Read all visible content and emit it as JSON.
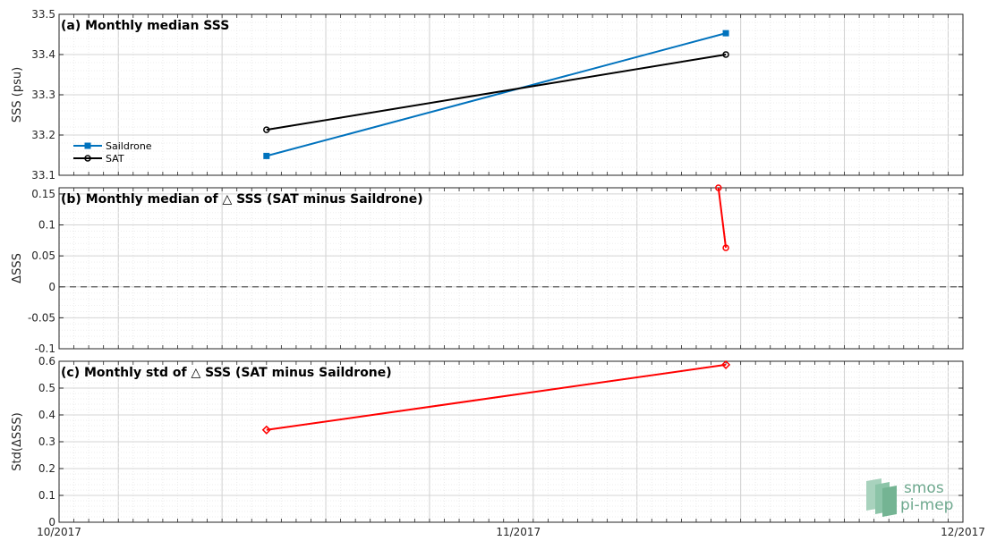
{
  "chart_data": [
    {
      "id": "a",
      "type": "line",
      "title": "(a) Monthly median SSS",
      "ylabel": "SSS (psu)",
      "ylim": [
        33.1,
        33.5
      ],
      "yticks": [
        "33.1",
        "33.2",
        "33.3",
        "33.4",
        "33.5"
      ],
      "legend": {
        "placement": "left",
        "entries": [
          "Saildrone",
          "SAT"
        ]
      },
      "series": [
        {
          "name": "Saildrone",
          "color": "#0072bd",
          "marker": "square",
          "x": [
            "2017-10-15",
            "2017-11-15"
          ],
          "y": [
            33.148,
            33.453
          ]
        },
        {
          "name": "SAT",
          "color": "#000000",
          "marker": "circle",
          "x": [
            "2017-10-15",
            "2017-11-15"
          ],
          "y": [
            33.213,
            33.4
          ]
        }
      ]
    },
    {
      "id": "b",
      "type": "line",
      "title": "(b) Monthly median of △ SSS (SAT minus Saildrone)",
      "ylabel": "ΔSSS",
      "ylim": [
        -0.1,
        0.16
      ],
      "yticks": [
        "-0.1",
        "-0.05",
        "0",
        "0.05",
        "0.1",
        "0.15"
      ],
      "reference_line": {
        "y": 0,
        "style": "dashed"
      },
      "series": [
        {
          "color": "#ff0000",
          "marker": "circle",
          "x": [
            "2017-11-14T12:00",
            "2017-11-15"
          ],
          "y": [
            0.16,
            0.063
          ]
        }
      ]
    },
    {
      "id": "c",
      "type": "line",
      "title": "(c) Monthly std of △ SSS (SAT minus Saildrone)",
      "ylabel": "Std(ΔSSS)",
      "ylim": [
        0,
        0.6
      ],
      "yticks": [
        "0",
        "0.1",
        "0.2",
        "0.3",
        "0.4",
        "0.5",
        "0.6"
      ],
      "series": [
        {
          "color": "#ff0000",
          "marker": "diamond",
          "x": [
            "2017-10-15",
            "2017-11-15"
          ],
          "y": [
            0.344,
            0.587
          ]
        }
      ]
    }
  ],
  "x_axis": {
    "range": [
      "2017-10-01",
      "2017-12-01"
    ],
    "tick_labels": [
      "10/2017",
      "11/2017",
      "12/2017"
    ],
    "grid": true
  },
  "logo": {
    "line1": "smos",
    "line2": "pi-mep"
  }
}
